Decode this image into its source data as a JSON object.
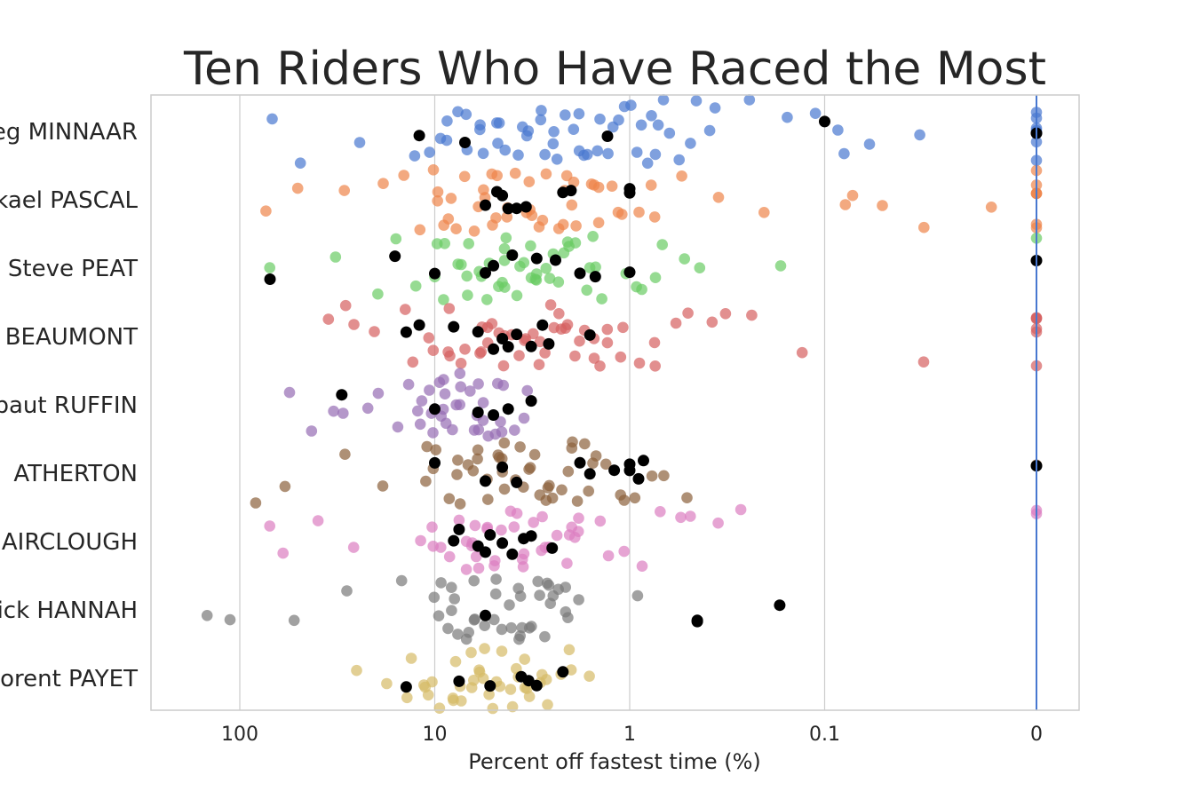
{
  "chart_data": {
    "type": "scatter",
    "title": "Ten Riders Who Have Raced the Most",
    "xlabel": "Percent off fastest time (%)",
    "ylabel": "",
    "x_scale": "log-reversed",
    "x_ticks": [
      "100",
      "10",
      "1",
      "0.1",
      "0"
    ],
    "grid": true,
    "legend": "none",
    "highlight_color": "#000000",
    "reference_line_color": "#4878d0",
    "categories": [
      "Greg MINNAAR",
      "Mickael PASCAL",
      "Steve PEAT",
      "Gee BEAUMONT",
      "Thibaut RUFFIN",
      "Gee ATHERTON",
      "Brendan FAIRCLOUGH",
      "Marc Patrick HANNAH",
      "Florent PAYET"
    ],
    "category_labels_visible": [
      "eg MINNAAR",
      "kael PASCAL",
      "Steve PEAT",
      "BEAUMONT",
      "baut RUFFIN",
      "ATHERTON",
      "AIRCLOUGH",
      "ick HANNAH",
      "orent PAYET"
    ],
    "series": [
      {
        "colour": "#4878d0",
        "points": [
          70,
          50,
          25,
          12,
          11,
          9,
          8,
          7,
          6.5,
          6,
          5.5,
          5,
          4.5,
          4,
          3.5,
          3,
          2.7,
          2.4,
          2.1,
          1.9,
          1.7,
          1.5,
          1.3,
          1.1,
          1.0,
          0.9,
          0.8,
          0.7,
          0.55,
          0.45,
          0.35,
          0.25,
          0.15,
          0.11,
          0.09,
          0.08,
          0.06,
          0.03,
          0,
          0,
          0,
          0,
          0,
          0,
          0,
          0,
          10,
          8,
          6,
          5,
          4.2,
          3.6,
          3.2,
          2.8,
          2.5,
          2.2,
          2.0,
          1.8,
          1.6,
          1.4,
          1.2,
          1.05,
          0.95,
          0.85,
          0.75,
          0.65,
          0.6,
          0.5,
          0.4
        ],
        "highlighted": [
          12,
          7,
          1.3,
          0.1,
          0
        ]
      },
      {
        "colour": "#ee854a",
        "points": [
          70,
          50,
          30,
          18,
          14,
          12,
          10,
          9,
          8,
          7,
          6,
          5.5,
          5,
          4.5,
          4,
          3.5,
          3.2,
          2.9,
          2.6,
          2.3,
          2.1,
          1.9,
          1.7,
          1.5,
          1.3,
          1.1,
          0.9,
          0.8,
          0.7,
          0.5,
          0.35,
          0.2,
          0.08,
          0.07,
          0.05,
          0.03,
          0.015,
          0,
          0,
          0,
          0,
          0,
          0,
          0,
          11,
          9.5,
          8.5,
          7.5,
          6.5,
          5.8,
          5.2,
          4.7,
          4.3,
          3.9,
          3.4,
          3.0,
          2.7,
          2.4,
          2.2,
          2.0,
          1.8,
          1.6,
          1.4,
          1.2
        ],
        "highlighted": [
          5.5,
          4.8,
          4.2,
          3.8,
          3.4,
          2.2,
          2.0,
          1.0,
          1.0,
          4.5
        ]
      },
      {
        "colour": "#6acc64",
        "points": [
          70,
          30,
          20,
          15,
          12,
          10,
          9,
          8,
          7,
          6.5,
          6,
          5.5,
          5,
          4.6,
          4.2,
          3.9,
          3.6,
          3.3,
          3.0,
          2.7,
          2.4,
          2.1,
          1.9,
          1.7,
          1.5,
          1.3,
          1.1,
          1.0,
          0.9,
          0.8,
          0.7,
          0.55,
          0.45,
          0.18,
          0,
          10,
          8.5,
          7.2,
          6.3,
          5.7,
          5.1,
          4.6,
          4.3,
          4.0,
          3.7,
          3.4,
          3.1,
          2.8,
          2.6,
          2.3,
          2.0,
          1.8,
          1.6,
          1.4
        ],
        "highlighted": [
          70,
          16,
          10,
          5.5,
          5.0,
          4.0,
          3.0,
          2.4,
          1.8,
          1.5,
          1.0,
          0
        ]
      },
      {
        "colour": "#d65f5f",
        "points": [
          35,
          30,
          25,
          20,
          14,
          12,
          10,
          9,
          8,
          7,
          6,
          5.5,
          5,
          4.5,
          4,
          3.5,
          3.2,
          2.9,
          2.6,
          2.3,
          2.1,
          1.9,
          1.7,
          1.5,
          1.3,
          1.1,
          0.9,
          0.8,
          0.7,
          0.6,
          0.5,
          0.4,
          0.3,
          0.25,
          0.12,
          0.03,
          0,
          0,
          0,
          0,
          0,
          0,
          10,
          8.5,
          7.2,
          6.3,
          5.6,
          5.0,
          4.5,
          4.1,
          3.7,
          3.3,
          3.0,
          2.7,
          2.4,
          2.2,
          2.0,
          1.8,
          1.6,
          1.4,
          1.2,
          1.0
        ],
        "highlighted": [
          14,
          12,
          8,
          6,
          5,
          4.5,
          4.2,
          3.8,
          3.2,
          2.8,
          2.6,
          1.6
        ]
      },
      {
        "colour": "#956cb4",
        "points": [
          55,
          45,
          32,
          28,
          22,
          18,
          15,
          13,
          12,
          11,
          10,
          9.5,
          9,
          8.5,
          8,
          7.5,
          7,
          6.5,
          6,
          5.5,
          5,
          4.6,
          4.2,
          3.8,
          3.4,
          3.2,
          12.5,
          11.5,
          10.5,
          9.8,
          9.2,
          8.7,
          8.2,
          7.7,
          7.2,
          6.8,
          6.3,
          5.8,
          5.3,
          4.9,
          4.5
        ],
        "highlighted": [
          30,
          10,
          6,
          5,
          4.2,
          3.2
        ]
      },
      {
        "colour": "#8c613c",
        "points": [
          80,
          60,
          30,
          18,
          12,
          10,
          9,
          8,
          7,
          6.5,
          6,
          5.5,
          5,
          4.6,
          4.2,
          3.9,
          3.6,
          3.3,
          3.0,
          2.7,
          2.4,
          2.1,
          1.9,
          1.7,
          1.5,
          1.3,
          1.1,
          1.0,
          0.9,
          0.8,
          0.7,
          0.55,
          0,
          10.5,
          9.2,
          8.0,
          7.0,
          6.2,
          5.6,
          5.1,
          4.6,
          4.2,
          3.8,
          3.4,
          3.1,
          2.8,
          2.5,
          2.3,
          2.1,
          1.9,
          1.7,
          1.5
        ],
        "highlighted": [
          10,
          5.5,
          4.5,
          3.8,
          1.8,
          1.6,
          1.2,
          1.0,
          1.0,
          0.9,
          0.85,
          0
        ]
      },
      {
        "colour": "#dc7ec0",
        "points": [
          70,
          60,
          40,
          25,
          12,
          10,
          9,
          8,
          7,
          6.5,
          6,
          5.5,
          5,
          4.6,
          4.2,
          3.9,
          3.6,
          3.3,
          3.0,
          2.7,
          2.4,
          2.1,
          1.9,
          1.7,
          1.5,
          1.3,
          1.1,
          0.9,
          0.7,
          0.55,
          0.45,
          0.35,
          0.28,
          0,
          0,
          9.5,
          8.3,
          7.3,
          6.4,
          5.7,
          5.1,
          4.6,
          4.2,
          3.8,
          3.4,
          3.1,
          2.8,
          2.5,
          2.2,
          2.0,
          1.8
        ],
        "highlighted": [
          8,
          7.5,
          6,
          5.5,
          5.2,
          4.5,
          4.0,
          3.5,
          3.2,
          2.5
        ]
      },
      {
        "colour": "#797979",
        "points": [
          140,
          110,
          50,
          30,
          14,
          10,
          9.2,
          8.5,
          7.8,
          7.2,
          6.6,
          6.0,
          5.5,
          5.0,
          4.6,
          4.2,
          3.9,
          3.6,
          3.3,
          3.0,
          2.8,
          2.6,
          2.4,
          2.2,
          2.0,
          1.8,
          0.95,
          9.8,
          8.8,
          7.9,
          7.1,
          6.4,
          5.8,
          5.3,
          4.8,
          4.4,
          4.0,
          3.7,
          3.4,
          3.1,
          2.9,
          2.7,
          2.5,
          2.3,
          2.1
        ],
        "highlighted": [
          5.5,
          0.45,
          0.45,
          0.17
        ]
      },
      {
        "colour": "#d5bb67",
        "points": [
          25,
          18,
          15,
          13,
          11,
          10,
          9,
          8,
          7.5,
          7,
          6.5,
          6,
          5.6,
          5.2,
          4.8,
          4.4,
          4.1,
          3.8,
          3.5,
          3.2,
          2.9,
          2.6,
          2.3,
          2.1,
          1.9,
          1.7,
          10.5,
          9.5,
          8.6,
          7.8,
          7.1,
          6.5,
          5.9,
          5.4,
          4.9,
          4.5,
          4.1,
          3.8,
          3.5,
          3.2,
          2.9,
          2.6
        ],
        "highlighted": [
          14,
          7.5,
          5.2,
          3.6,
          3.3,
          3.0,
          2.2
        ]
      }
    ]
  }
}
